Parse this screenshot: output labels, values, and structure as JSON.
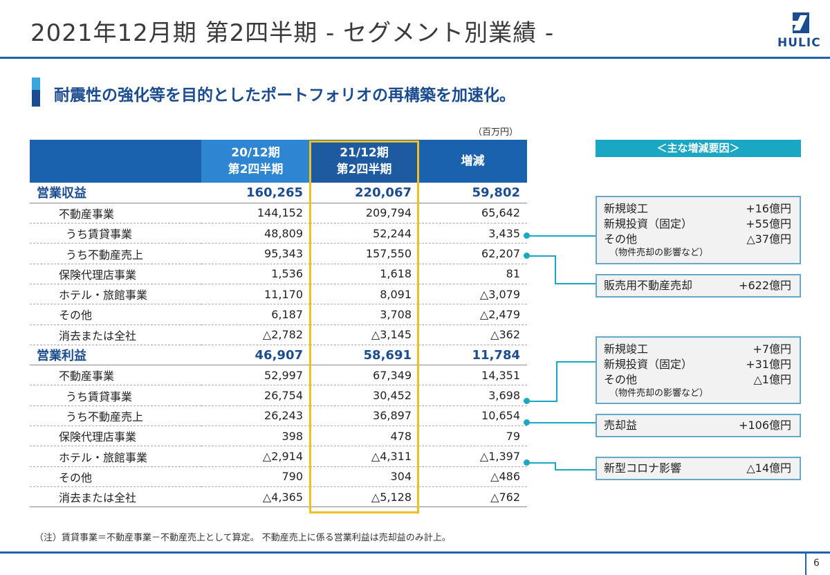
{
  "header": {
    "title": "2021年12月期 第2四半期 - セグメント別業績 -",
    "logo_text": "HULIC"
  },
  "subtitle": "耐震性の強化等を目的としたポートフォリオの再構築を加速化。",
  "unit": "（百万円）",
  "table": {
    "col1": [
      "20/12期",
      "第2四半期"
    ],
    "col2": [
      "21/12期",
      "第2四半期"
    ],
    "col3": "増減",
    "rows": [
      {
        "label": "営業収益",
        "v1": "160,265",
        "v2": "220,067",
        "v3": "59,802"
      },
      {
        "label": "不動産事業",
        "v1": "144,152",
        "v2": "209,794",
        "v3": "65,642"
      },
      {
        "label": "うち賃貸事業",
        "v1": "48,809",
        "v2": "52,244",
        "v3": "3,435"
      },
      {
        "label": "うち不動産売上",
        "v1": "95,343",
        "v2": "157,550",
        "v3": "62,207"
      },
      {
        "label": "保険代理店事業",
        "v1": "1,536",
        "v2": "1,618",
        "v3": "81"
      },
      {
        "label": "ホテル・旅館事業",
        "v1": "11,170",
        "v2": "8,091",
        "v3": "△3,079"
      },
      {
        "label": "その他",
        "v1": "6,187",
        "v2": "3,708",
        "v3": "△2,479"
      },
      {
        "label": "消去または全社",
        "v1": "△2,782",
        "v2": "△3,145",
        "v3": "△362"
      },
      {
        "label": "営業利益",
        "v1": "46,907",
        "v2": "58,691",
        "v3": "11,784"
      },
      {
        "label": "不動産事業",
        "v1": "52,997",
        "v2": "67,349",
        "v3": "14,351"
      },
      {
        "label": "うち賃貸事業",
        "v1": "26,754",
        "v2": "30,452",
        "v3": "3,698"
      },
      {
        "label": "うち不動産売上",
        "v1": "26,243",
        "v2": "36,897",
        "v3": "10,654"
      },
      {
        "label": "保険代理店事業",
        "v1": "398",
        "v2": "478",
        "v3": "79"
      },
      {
        "label": "ホテル・旅館事業",
        "v1": "△2,914",
        "v2": "△4,311",
        "v3": "△1,397"
      },
      {
        "label": "その他",
        "v1": "790",
        "v2": "304",
        "v3": "△486"
      },
      {
        "label": "消去または全社",
        "v1": "△4,365",
        "v2": "△5,128",
        "v3": "△762"
      }
    ]
  },
  "factors": {
    "heading": "＜主な増減要因＞",
    "box1": {
      "r1l": "新規竣工",
      "r1v": "+16億円",
      "r2l": "新規投資（固定）",
      "r2v": "+55億円",
      "r3l": "その他",
      "r3v": "△37億円",
      "note": "（物件売却の影響など）"
    },
    "box2": {
      "label": "販売用不動産売却",
      "value": "+622億円"
    },
    "box3": {
      "r1l": "新規竣工",
      "r1v": "+7億円",
      "r2l": "新規投資（固定）",
      "r2v": "+31億円",
      "r3l": "その他",
      "r3v": "△1億円",
      "note": "（物件売却の影響など）"
    },
    "box4": {
      "label": "売却益",
      "value": "+106億円"
    },
    "box5": {
      "label": "新型コロナ影響",
      "value": "△14億円"
    }
  },
  "footnote": "（注）賃貸事業＝不動産事業－不動産売上として算定。 不動産売上に係る営業利益は売却益のみ計上。",
  "page_number": "6",
  "colors": {
    "primary": "#1a4c8f",
    "header_blue": "#1a62ad",
    "accent_teal": "#1aa7c4",
    "highlight": "#f0c020"
  }
}
